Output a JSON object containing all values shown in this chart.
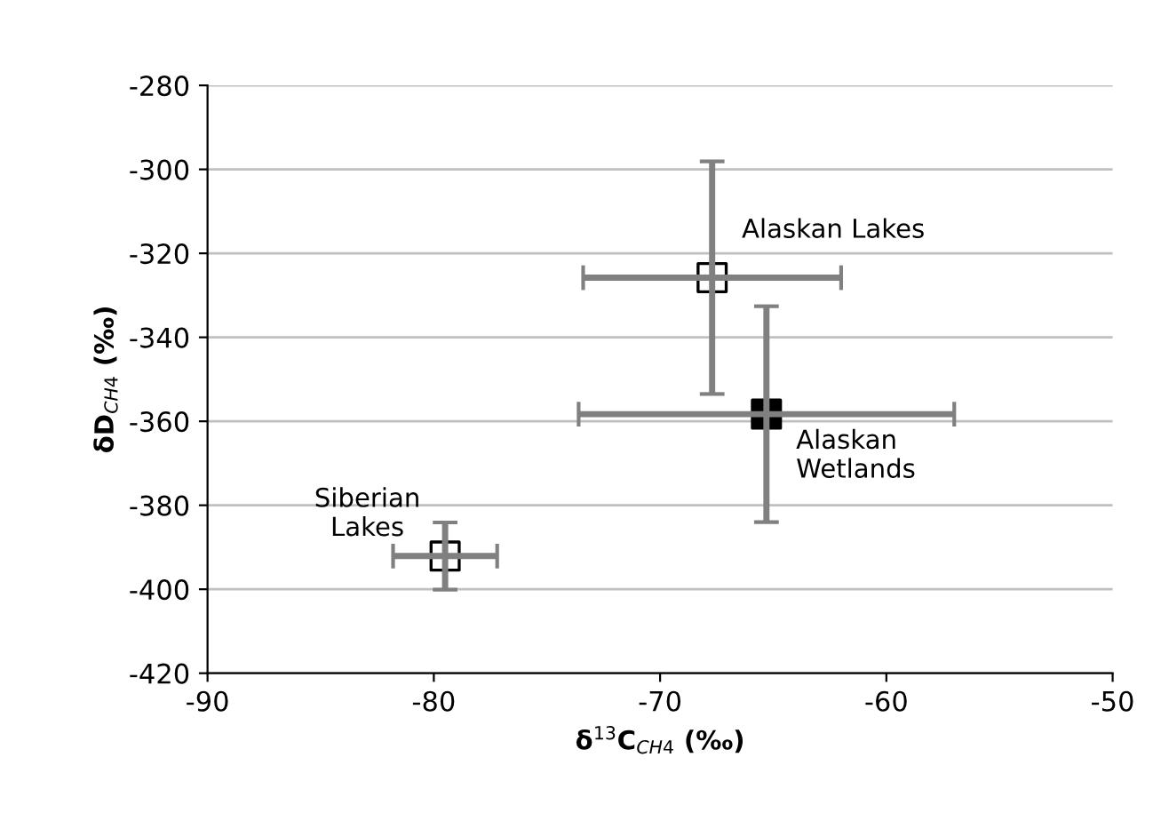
{
  "chart_data": {
    "type": "scatter",
    "xlabel": "δ$^{13}$C$_{CH4}$ (‰)",
    "ylabel": "δD$_{CH4}$ (‰)",
    "xlim": [
      -90,
      -50
    ],
    "xticks": [
      -90,
      -80,
      -70,
      -60,
      -50
    ],
    "ylim": [
      -420,
      -280
    ],
    "yticks": [
      -420,
      -400,
      -380,
      -360,
      -340,
      -320,
      -300,
      -280
    ],
    "grid": "y",
    "marker": "square",
    "series": [
      {
        "name": "Alaskan Lakes",
        "color": "#ffffff",
        "x": [
          -67.7
        ],
        "values": [
          -325.8
        ],
        "errors": [
          27.7
        ],
        "xerrors": [
          5.7
        ]
      },
      {
        "name": "Alaskan Wetlands",
        "color": "#000000",
        "x": [
          -65.3
        ],
        "values": [
          -358.3
        ],
        "errors": [
          25.7
        ],
        "xerrors": [
          8.3
        ]
      },
      {
        "name": "Siberian Lakes",
        "color": "#ffffff",
        "x": [
          -79.5
        ],
        "values": [
          -392.1
        ],
        "errors": [
          8.0
        ],
        "xerrors": [
          2.3
        ]
      }
    ]
  }
}
